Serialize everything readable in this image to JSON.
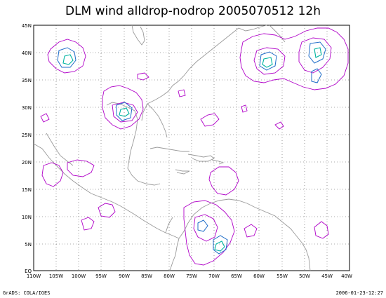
{
  "map": {
    "title": "DLM wind alldrop-nodrop 2005070512 12h",
    "lat_ticks": [
      "45N",
      "40N",
      "35N",
      "30N",
      "25N",
      "20N",
      "15N",
      "10N",
      "5N",
      "EQ"
    ],
    "lon_ticks": [
      "110W",
      "105W",
      "100W",
      "95W",
      "90W",
      "85W",
      "80W",
      "75W",
      "70W",
      "65W",
      "60W",
      "55W",
      "50W",
      "45W",
      "40W"
    ],
    "lon_range": [
      -110,
      -40
    ],
    "lat_range": [
      0,
      45
    ],
    "colors": {
      "land": "#9a9a9a",
      "contour_main": "#b000c8",
      "contour_mid": "#1e6cc8",
      "contour_high": "#00b4a0"
    }
  },
  "footer": {
    "left": "GrADS: COLA/IGES",
    "right": "2006-01-23-12:27"
  }
}
